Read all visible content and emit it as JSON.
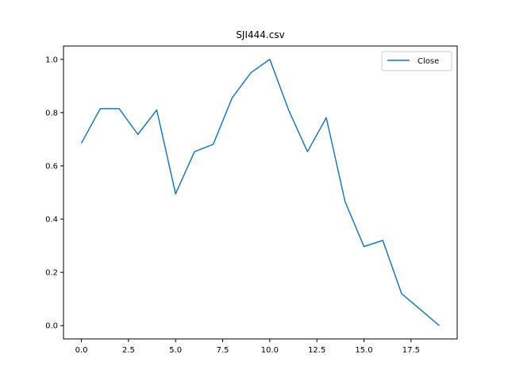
{
  "chart_data": {
    "type": "line",
    "title": "SJI444.csv",
    "xlabel": "",
    "ylabel": "",
    "xlim": [
      -0.95,
      19.95
    ],
    "ylim": [
      -0.05,
      1.05
    ],
    "xticks": [
      0.0,
      2.5,
      5.0,
      7.5,
      10.0,
      12.5,
      15.0,
      17.5
    ],
    "xtick_labels": [
      "0.0",
      "2.5",
      "5.0",
      "7.5",
      "10.0",
      "12.5",
      "15.0",
      "17.5"
    ],
    "yticks": [
      0.0,
      0.2,
      0.4,
      0.6,
      0.8,
      1.0
    ],
    "ytick_labels": [
      "0.0",
      "0.2",
      "0.4",
      "0.6",
      "0.8",
      "1.0"
    ],
    "grid": false,
    "legend_position": "top-right",
    "series": [
      {
        "name": "Close",
        "color": "#1f77b4",
        "x": [
          0,
          1,
          2,
          3,
          4,
          5,
          6,
          7,
          8,
          9,
          10,
          11,
          12,
          13,
          14,
          15,
          16,
          17,
          18,
          19
        ],
        "y": [
          0.685,
          0.815,
          0.815,
          0.718,
          0.81,
          0.495,
          0.653,
          0.681,
          0.855,
          0.95,
          1.0,
          0.81,
          0.653,
          0.781,
          0.465,
          0.297,
          0.32,
          0.12,
          0.06,
          0.0
        ]
      }
    ]
  }
}
